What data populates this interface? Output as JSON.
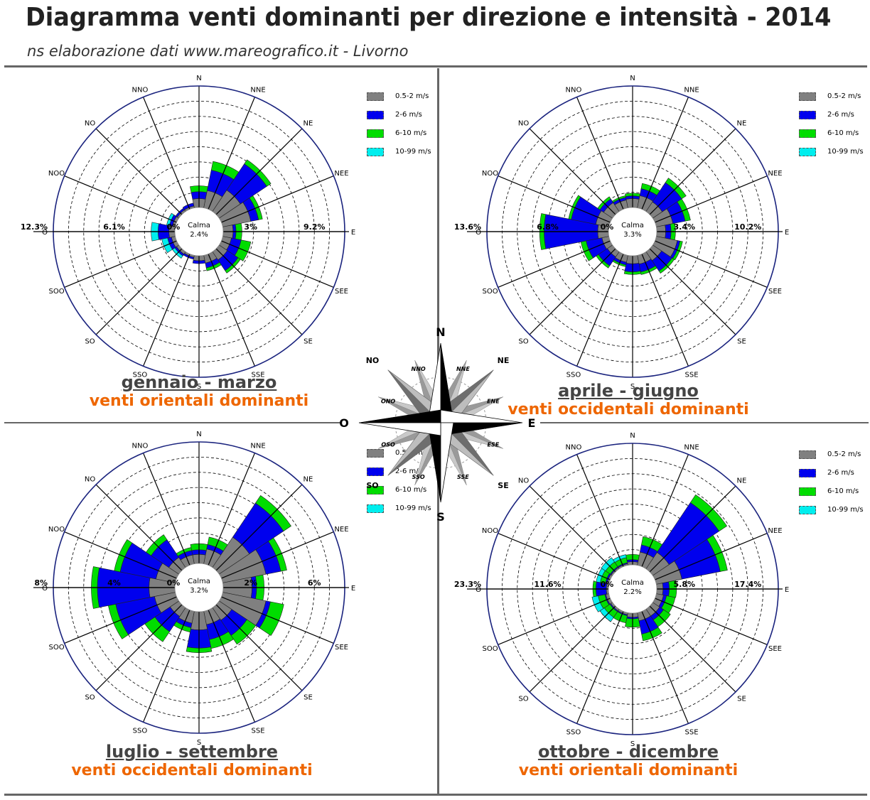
{
  "header": {
    "title": "Diagramma venti dominanti per direzione e intensità - 2014",
    "subtitle": "ns elaborazione dati www.mareografico.it - Livorno"
  },
  "colors": {
    "range_0": "#808080",
    "range_1": "#0000ee",
    "range_2": "#00dd00",
    "range_3": "#00eeee",
    "outer_ring": "#1a237e",
    "accent_text": "#ee6600"
  },
  "legend_labels": [
    "0.5-2 m/s",
    "2-6 m/s",
    "6-10 m/s",
    "10-99 m/s"
  ],
  "direction_labels": [
    "N",
    "NNE",
    "NE",
    "NEE",
    "E",
    "SEE",
    "SE",
    "SSE",
    "S",
    "SSO",
    "SO",
    "SOO",
    "O",
    "NOO",
    "NO",
    "NNO"
  ],
  "calm_label": "Calma",
  "compass": {
    "main": [
      "N",
      "E",
      "S",
      "O"
    ],
    "inter": [
      "NE",
      "SE",
      "SO",
      "NO"
    ],
    "minor": [
      "NNE",
      "ENE",
      "ESE",
      "SSE",
      "SSO",
      "OSO",
      "ONO",
      "NNO"
    ]
  },
  "chart_data": [
    {
      "type": "wind-rose",
      "period": "gennaio - marzo",
      "note": "venti orientali dominanti",
      "calm": "2.4%",
      "ring_labels": {
        "left": "12.3%",
        "left_inner": "6.1%",
        "center_left": "0%",
        "center_right": "3%",
        "right": "9.2%"
      },
      "rmax": 12.3,
      "directions": [
        "N",
        "NNE",
        "NE",
        "NEE",
        "E",
        "SEE",
        "SE",
        "SSE",
        "S",
        "SSO",
        "SO",
        "SOO",
        "O",
        "NOO",
        "NO",
        "NNO"
      ],
      "series": [
        {
          "speed": "0.5-2 m/s",
          "values": [
            0.9,
            1.8,
            2.6,
            2.9,
            1.0,
            0.9,
            1.0,
            0.8,
            0.5,
            0.2,
            0.3,
            0.4,
            0.6,
            0.3,
            0.2,
            0.2
          ]
        },
        {
          "speed": "2-6 m/s",
          "values": [
            0.7,
            2.1,
            3.2,
            0.8,
            0.3,
            1.0,
            1.3,
            0.5,
            0.3,
            0.2,
            0.2,
            0.4,
            1.1,
            0.3,
            0.2,
            0.3
          ]
        },
        {
          "speed": "6-10 m/s",
          "values": [
            0.6,
            0.9,
            0.5,
            0.4,
            0.6,
            1.0,
            0.3,
            0.3,
            0,
            0,
            0,
            0,
            0,
            0,
            0,
            0
          ]
        },
        {
          "speed": "10-99 m/s",
          "values": [
            0,
            0,
            0,
            0,
            0,
            0,
            0,
            0,
            0,
            0,
            0.3,
            0.6,
            0.7,
            0.3,
            0,
            0
          ]
        }
      ]
    },
    {
      "type": "wind-rose",
      "period": "aprile - giugno",
      "note": "venti occidentali dominanti",
      "calm": "3.3%",
      "ring_labels": {
        "left": "13.6%",
        "left_inner": "6.8%",
        "center_left": "0%",
        "center_right": "3.4%",
        "right": "10.2%"
      },
      "rmax": 13.6,
      "directions": [
        "N",
        "NNE",
        "NE",
        "NEE",
        "E",
        "SEE",
        "SE",
        "SSE",
        "S",
        "SSO",
        "SO",
        "SOO",
        "O",
        "NOO",
        "NO",
        "NNO"
      ],
      "series": [
        {
          "speed": "0.5-2 m/s",
          "values": [
            1.0,
            1.4,
            1.3,
            1.9,
            1.0,
            2.4,
            1.2,
            1.0,
            0.9,
            0.8,
            0.7,
            0.8,
            1.2,
            1.5,
            1.2,
            0.9
          ]
        },
        {
          "speed": "2-6 m/s",
          "values": [
            0.3,
            0.8,
            2.6,
            1.4,
            0.6,
            0.3,
            1.4,
            0.9,
            0.9,
            0.3,
            1.2,
            1.8,
            6.0,
            2.8,
            0.5,
            0.3
          ]
        },
        {
          "speed": "6-10 m/s",
          "values": [
            0.3,
            0.6,
            0.6,
            0.6,
            0.5,
            0.3,
            0.3,
            0.3,
            0.3,
            0.2,
            0.3,
            0.6,
            0.5,
            0.3,
            0.3,
            0.2
          ]
        },
        {
          "speed": "10-99 m/s",
          "values": [
            0,
            0,
            0,
            0,
            0,
            0,
            0,
            0,
            0,
            0,
            0,
            0,
            0,
            0,
            0,
            0
          ]
        }
      ]
    },
    {
      "type": "wind-rose",
      "period": "luglio - settembre",
      "note": "venti occidentali dominanti",
      "calm": "3.2%",
      "ring_labels": {
        "left": "8%",
        "left_inner": "4%",
        "center_left": "0%",
        "center_right": "2%",
        "right": "6%"
      },
      "rmax": 8,
      "directions": [
        "N",
        "NNE",
        "NE",
        "NEE",
        "E",
        "SEE",
        "SE",
        "SSE",
        "S",
        "SSO",
        "SO",
        "SOO",
        "O",
        "NOO",
        "NO",
        "NNO"
      ],
      "series": [
        {
          "speed": "0.5-2 m/s",
          "values": [
            0.6,
            1.0,
            2.4,
            2.9,
            1.9,
            2.9,
            1.0,
            0.9,
            1.2,
            0.8,
            0.7,
            1.4,
            1.7,
            1.3,
            0.8,
            0.6
          ]
        },
        {
          "speed": "2-6 m/s",
          "values": [
            0.3,
            0.3,
            2.7,
            1.0,
            0.3,
            0.3,
            1.2,
            1.0,
            1.2,
            0.3,
            1.2,
            2.6,
            3.4,
            2.4,
            1.4,
            0.3
          ]
        },
        {
          "speed": "6-10 m/s",
          "values": [
            0.4,
            0.5,
            0.6,
            0.4,
            0.5,
            0.9,
            0.7,
            0.6,
            0.3,
            0.3,
            0.8,
            0.5,
            0.4,
            0.4,
            0.4,
            0.2
          ]
        },
        {
          "speed": "10-99 m/s",
          "values": [
            0,
            0,
            0,
            0,
            0,
            0,
            0,
            0,
            0,
            0,
            0,
            0,
            0,
            0,
            0,
            0
          ]
        }
      ]
    },
    {
      "type": "wind-rose",
      "period": "ottobre - dicembre",
      "note": "venti orientali dominanti",
      "calm": "2.2%",
      "ring_labels": {
        "left": "23.3%",
        "left_inner": "11.6%",
        "center_left": "0%",
        "center_right": "5.8%",
        "right": "17.4%"
      },
      "rmax": 23.3,
      "directions": [
        "N",
        "NNE",
        "NE",
        "NEE",
        "E",
        "SEE",
        "SE",
        "SSE",
        "S",
        "SSO",
        "SO",
        "SOO",
        "O",
        "NOO",
        "NO",
        "NNO"
      ],
      "series": [
        {
          "speed": "0.5-2 m/s",
          "values": [
            0.6,
            2.6,
            3.8,
            5.0,
            1.2,
            1.4,
            1.6,
            1.6,
            0.8,
            0.4,
            0.4,
            0.6,
            0.4,
            0.4,
            0.3,
            0.3
          ]
        },
        {
          "speed": "2-6 m/s",
          "values": [
            0.4,
            1.4,
            11.5,
            7.5,
            1.2,
            0.6,
            0.9,
            2.6,
            0.3,
            0.2,
            0.2,
            0.2,
            2.0,
            0.3,
            0.2,
            0.2
          ]
        },
        {
          "speed": "6-10 m/s",
          "values": [
            1.0,
            1.6,
            1.8,
            1.4,
            1.4,
            1.7,
            1.6,
            1.3,
            1.6,
            1.4,
            1.3,
            1.3,
            0.6,
            1.0,
            1.1,
            1.0
          ]
        },
        {
          "speed": "10-99 m/s",
          "values": [
            0,
            0,
            0,
            0,
            0,
            0,
            0,
            0,
            0,
            0,
            1.0,
            1.2,
            0,
            0.8,
            1.0,
            0.6
          ]
        }
      ]
    }
  ]
}
